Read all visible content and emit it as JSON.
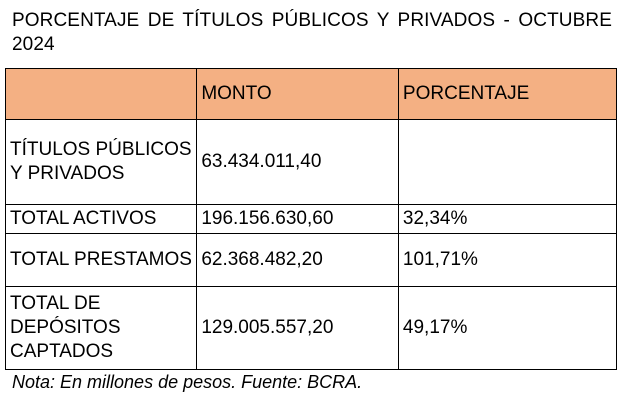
{
  "title": "PORCENTAJE  DE TÍTULOS PÚBLICOS Y PRIVADOS - OCTUBRE 2024",
  "table": {
    "headers": [
      "",
      "MONTO",
      "PORCENTAJE"
    ],
    "rows": [
      {
        "label": "TÍTULOS PÚBLICOS Y PRIVADOS",
        "monto": "63.434.011,40",
        "porcentaje": ""
      },
      {
        "label": "TOTAL ACTIVOS",
        "monto": "196.156.630,60",
        "porcentaje": "32,34%"
      },
      {
        "label": "TOTAL PRESTAMOS",
        "monto": "62.368.482,20",
        "porcentaje": "101,71%"
      },
      {
        "label": "TOTAL DE DEPÓSITOS CAPTADOS",
        "monto": "129.005.557,20",
        "porcentaje": "49,17%"
      }
    ]
  },
  "note": "Nota: En millones de pesos. Fuente: BCRA.",
  "colors": {
    "header_fill": "#f4b083",
    "border": "#000000",
    "text": "#000000"
  }
}
